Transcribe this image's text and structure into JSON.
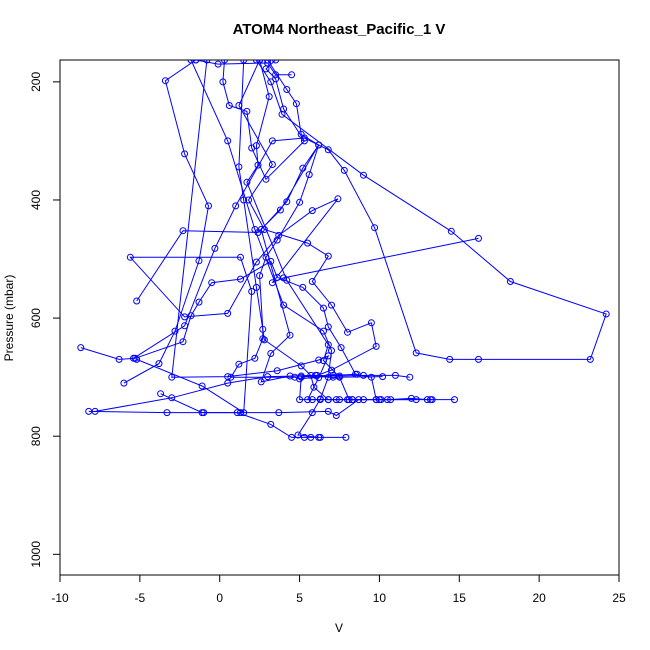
{
  "chart_data": {
    "type": "scatter",
    "title": "ATOM4 Northeast_Pacific_1 V",
    "xlabel": "V",
    "ylabel": "Pressure (mbar)",
    "xlim": [
      -10,
      25
    ],
    "ylim": [
      1035,
      163
    ],
    "y_reversed": true,
    "x_ticks": [
      -10,
      -5,
      0,
      5,
      10,
      15,
      20,
      25
    ],
    "y_ticks": [
      200,
      400,
      600,
      800,
      1000
    ],
    "color": "#0000ff",
    "marker": "open-circle",
    "series": [
      {
        "values": [
          [
            -8.7,
            650
          ],
          [
            -6.3,
            670
          ],
          [
            -5.3,
            668
          ],
          [
            -2.3,
            640
          ],
          [
            -1.8,
            596
          ],
          [
            -1.3,
            573
          ],
          [
            -0.5,
            540
          ],
          [
            1.3,
            534
          ],
          [
            3.2,
            504
          ],
          [
            3.6,
            531
          ],
          [
            5.2,
            548
          ],
          [
            6.5,
            583
          ],
          [
            6.8,
            615
          ],
          [
            7.6,
            650
          ],
          [
            8.5,
            695
          ],
          [
            9.5,
            700
          ],
          [
            9.8,
            738
          ],
          [
            13.2,
            738
          ],
          [
            14.7,
            738
          ]
        ]
      },
      {
        "values": [
          [
            -8.2,
            758
          ],
          [
            -3.3,
            760
          ],
          [
            -1.0,
            760
          ],
          [
            1.3,
            760
          ],
          [
            3.7,
            760
          ],
          [
            6.8,
            758
          ],
          [
            7.3,
            765
          ],
          [
            8.7,
            738
          ]
        ]
      },
      {
        "values": [
          [
            -7.8,
            758
          ],
          [
            -3.0,
            735
          ],
          [
            0.5,
            710
          ],
          [
            3.0,
            699
          ],
          [
            5.1,
            698
          ],
          [
            7.1,
            700
          ],
          [
            10.2,
            699
          ]
        ]
      },
      {
        "values": [
          [
            -5.4,
            668
          ],
          [
            -2.2,
            613
          ],
          [
            -0.3,
            482
          ],
          [
            1.0,
            410
          ],
          [
            3.3,
            300
          ],
          [
            5.3,
            295
          ],
          [
            6.8,
            315
          ],
          [
            7.8,
            350
          ],
          [
            9.7,
            447
          ],
          [
            12.3,
            659
          ],
          [
            14.4,
            670
          ],
          [
            16.2,
            670
          ],
          [
            23.2,
            670
          ],
          [
            24.2,
            593
          ],
          [
            18.2,
            538
          ],
          [
            14.5,
            453
          ],
          [
            9.0,
            358
          ],
          [
            3.9,
            255
          ],
          [
            3.2,
            200
          ],
          [
            2.3,
            163
          ]
        ]
      },
      {
        "values": [
          [
            -6.0,
            710
          ],
          [
            -3.8,
            677
          ],
          [
            -2.8,
            622
          ],
          [
            -1.3,
            503
          ],
          [
            -0.7,
            410
          ],
          [
            -2.2,
            322
          ],
          [
            -3.4,
            198
          ],
          [
            -1.5,
            163
          ]
        ]
      },
      {
        "values": [
          [
            -5.2,
            571
          ],
          [
            -2.3,
            452
          ],
          [
            2.4,
            455
          ],
          [
            3.8,
            417
          ],
          [
            6.2,
            307
          ],
          [
            5.2,
            346
          ],
          [
            4.2,
            403
          ],
          [
            2.6,
            450
          ],
          [
            4.4,
            629
          ],
          [
            3.2,
            660
          ],
          [
            2.6,
            708
          ],
          [
            4.4,
            698
          ],
          [
            6.0,
            697
          ],
          [
            7.5,
            698
          ],
          [
            9.0,
            697
          ],
          [
            11.0,
            697
          ],
          [
            11.9,
            700
          ]
        ]
      },
      {
        "values": [
          [
            -5.2,
            670
          ],
          [
            -1.1,
            715
          ],
          [
            1.5,
            760
          ],
          [
            2.0,
            555
          ],
          [
            1.3,
            497
          ],
          [
            -5.6,
            497
          ],
          [
            -2.2,
            598
          ],
          [
            0.5,
            592
          ],
          [
            2.3,
            505
          ],
          [
            3.7,
            460
          ],
          [
            5.8,
            418
          ],
          [
            7.4,
            398
          ],
          [
            3.3,
            540
          ],
          [
            4.0,
            532
          ],
          [
            16.2,
            465
          ]
        ]
      },
      {
        "values": [
          [
            -3.7,
            728
          ],
          [
            -1.1,
            760
          ],
          [
            1.1,
            760
          ],
          [
            3.2,
            780
          ],
          [
            4.5,
            802
          ],
          [
            5.3,
            802
          ],
          [
            5.7,
            802
          ],
          [
            6.3,
            802
          ],
          [
            7.9,
            802
          ]
        ]
      },
      {
        "values": [
          [
            2.5,
            163
          ],
          [
            1.2,
            240
          ],
          [
            3.3,
            340
          ],
          [
            1.8,
            400
          ],
          [
            2.8,
            450
          ],
          [
            5.5,
            473
          ],
          [
            6.8,
            495
          ],
          [
            5.8,
            538
          ],
          [
            7.0,
            578
          ],
          [
            8.0,
            624
          ],
          [
            9.5,
            608
          ],
          [
            9.8,
            648
          ],
          [
            7.0,
            688
          ],
          [
            6.1,
            697
          ],
          [
            5.1,
            700
          ],
          [
            5.0,
            738
          ],
          [
            6.8,
            738
          ],
          [
            8.3,
            738
          ],
          [
            10.1,
            738
          ],
          [
            10.5,
            738
          ],
          [
            12.0,
            736
          ],
          [
            13.0,
            738
          ],
          [
            13.3,
            738
          ]
        ]
      },
      {
        "values": [
          [
            0.3,
            163
          ],
          [
            0.2,
            200
          ],
          [
            0.6,
            240
          ],
          [
            1.7,
            250
          ],
          [
            2.0,
            312
          ],
          [
            2.9,
            365
          ],
          [
            5.3,
            300
          ],
          [
            4.0,
            246
          ],
          [
            3.5,
            195
          ],
          [
            2.9,
            178
          ],
          [
            3.5,
            163
          ]
        ]
      },
      {
        "values": [
          [
            3.0,
            163
          ],
          [
            4.2,
            213
          ],
          [
            4.8,
            237
          ],
          [
            5.1,
            289
          ],
          [
            6.2,
            307
          ],
          [
            5.6,
            357
          ],
          [
            5.0,
            404
          ],
          [
            3.6,
            468
          ],
          [
            2.9,
            497
          ],
          [
            2.5,
            528
          ],
          [
            2.7,
            619
          ],
          [
            2.7,
            635
          ],
          [
            2.2,
            668
          ],
          [
            1.2,
            678
          ],
          [
            0.7,
            700
          ],
          [
            4.7,
            700
          ],
          [
            5.0,
            703
          ],
          [
            7.1,
            697
          ],
          [
            8.6,
            695
          ]
        ]
      },
      {
        "values": [
          [
            2.5,
            163
          ],
          [
            3.1,
            225
          ],
          [
            2.3,
            308
          ],
          [
            2.4,
            341
          ],
          [
            1.7,
            370
          ],
          [
            4.2,
            536
          ],
          [
            6.8,
            645
          ],
          [
            6.5,
            672
          ],
          [
            7.5,
            700
          ],
          [
            8.1,
            738
          ],
          [
            10.0,
            738
          ],
          [
            10.7,
            738
          ]
        ]
      },
      {
        "values": [
          [
            1.5,
            163
          ],
          [
            1.2,
            344
          ],
          [
            1.5,
            400
          ],
          [
            2.3,
            548
          ],
          [
            2.8,
            637
          ],
          [
            5.1,
            681
          ],
          [
            5.7,
            697
          ],
          [
            5.9,
            717
          ],
          [
            6.8,
            738
          ],
          [
            7.5,
            738
          ],
          [
            8.0,
            738
          ],
          [
            8.3,
            738
          ],
          [
            9.0,
            738
          ],
          [
            9.8,
            738
          ],
          [
            12.3,
            738
          ]
        ]
      },
      {
        "values": [
          [
            -0.8,
            163
          ],
          [
            -3.0,
            700
          ],
          [
            0.5,
            699
          ],
          [
            3.6,
            689
          ],
          [
            6.2,
            671
          ],
          [
            6.8,
            664
          ],
          [
            6.2,
            701
          ],
          [
            5.5,
            738
          ],
          [
            5.8,
            738
          ],
          [
            6.3,
            738
          ],
          [
            7.3,
            738
          ]
        ]
      },
      {
        "values": [
          [
            -1.8,
            163
          ],
          [
            0.5,
            300
          ],
          [
            2.2,
            450
          ],
          [
            4.0,
            578
          ],
          [
            6.5,
            622
          ],
          [
            7.0,
            655
          ],
          [
            6.8,
            700
          ],
          [
            6.3,
            737
          ],
          [
            5.8,
            760
          ],
          [
            4.9,
            798
          ],
          [
            6.2,
            802
          ]
        ]
      },
      {
        "values": [
          [
            -1.5,
            163
          ],
          [
            -0.1,
            170
          ],
          [
            3.0,
            168
          ],
          [
            3.5,
            188
          ],
          [
            4.5,
            188
          ]
        ]
      }
    ]
  }
}
